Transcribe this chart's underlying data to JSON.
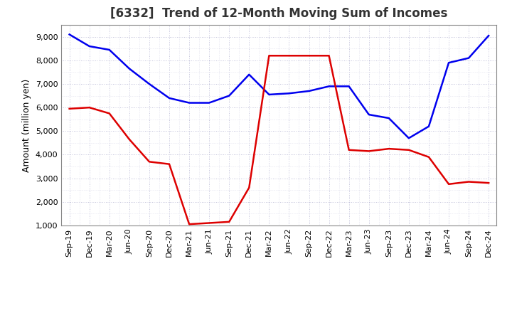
{
  "title": "[6332]  Trend of 12-Month Moving Sum of Incomes",
  "ylabel": "Amount (million yen)",
  "ylim": [
    1000,
    9500
  ],
  "yticks": [
    1000,
    2000,
    3000,
    4000,
    5000,
    6000,
    7000,
    8000,
    9000
  ],
  "x_labels": [
    "Sep-19",
    "Dec-19",
    "Mar-20",
    "Jun-20",
    "Sep-20",
    "Dec-20",
    "Mar-21",
    "Jun-21",
    "Sep-21",
    "Dec-21",
    "Mar-22",
    "Jun-22",
    "Sep-22",
    "Dec-22",
    "Mar-23",
    "Jun-23",
    "Sep-23",
    "Dec-23",
    "Mar-24",
    "Jun-24",
    "Sep-24",
    "Dec-24"
  ],
  "ordinary_income": [
    9100,
    8600,
    8450,
    7650,
    7000,
    6400,
    6200,
    6200,
    6500,
    7400,
    6550,
    6600,
    6700,
    6900,
    6900,
    5700,
    5550,
    4700,
    5200,
    7900,
    8100,
    9050
  ],
  "net_income": [
    5950,
    6000,
    5750,
    4650,
    3700,
    3600,
    1050,
    1100,
    1150,
    2600,
    8200,
    8200,
    8200,
    8200,
    4200,
    4150,
    4250,
    4200,
    3900,
    2750,
    2850,
    2800
  ],
  "ordinary_color": "#0000EE",
  "net_color": "#DD0000",
  "line_width": 1.8,
  "bg_color": "#FFFFFF",
  "plot_bg_color": "#FFFFFF",
  "grid_color": "#AAAACC",
  "title_fontsize": 12,
  "label_fontsize": 9,
  "tick_fontsize": 8,
  "legend_fontsize": 9
}
